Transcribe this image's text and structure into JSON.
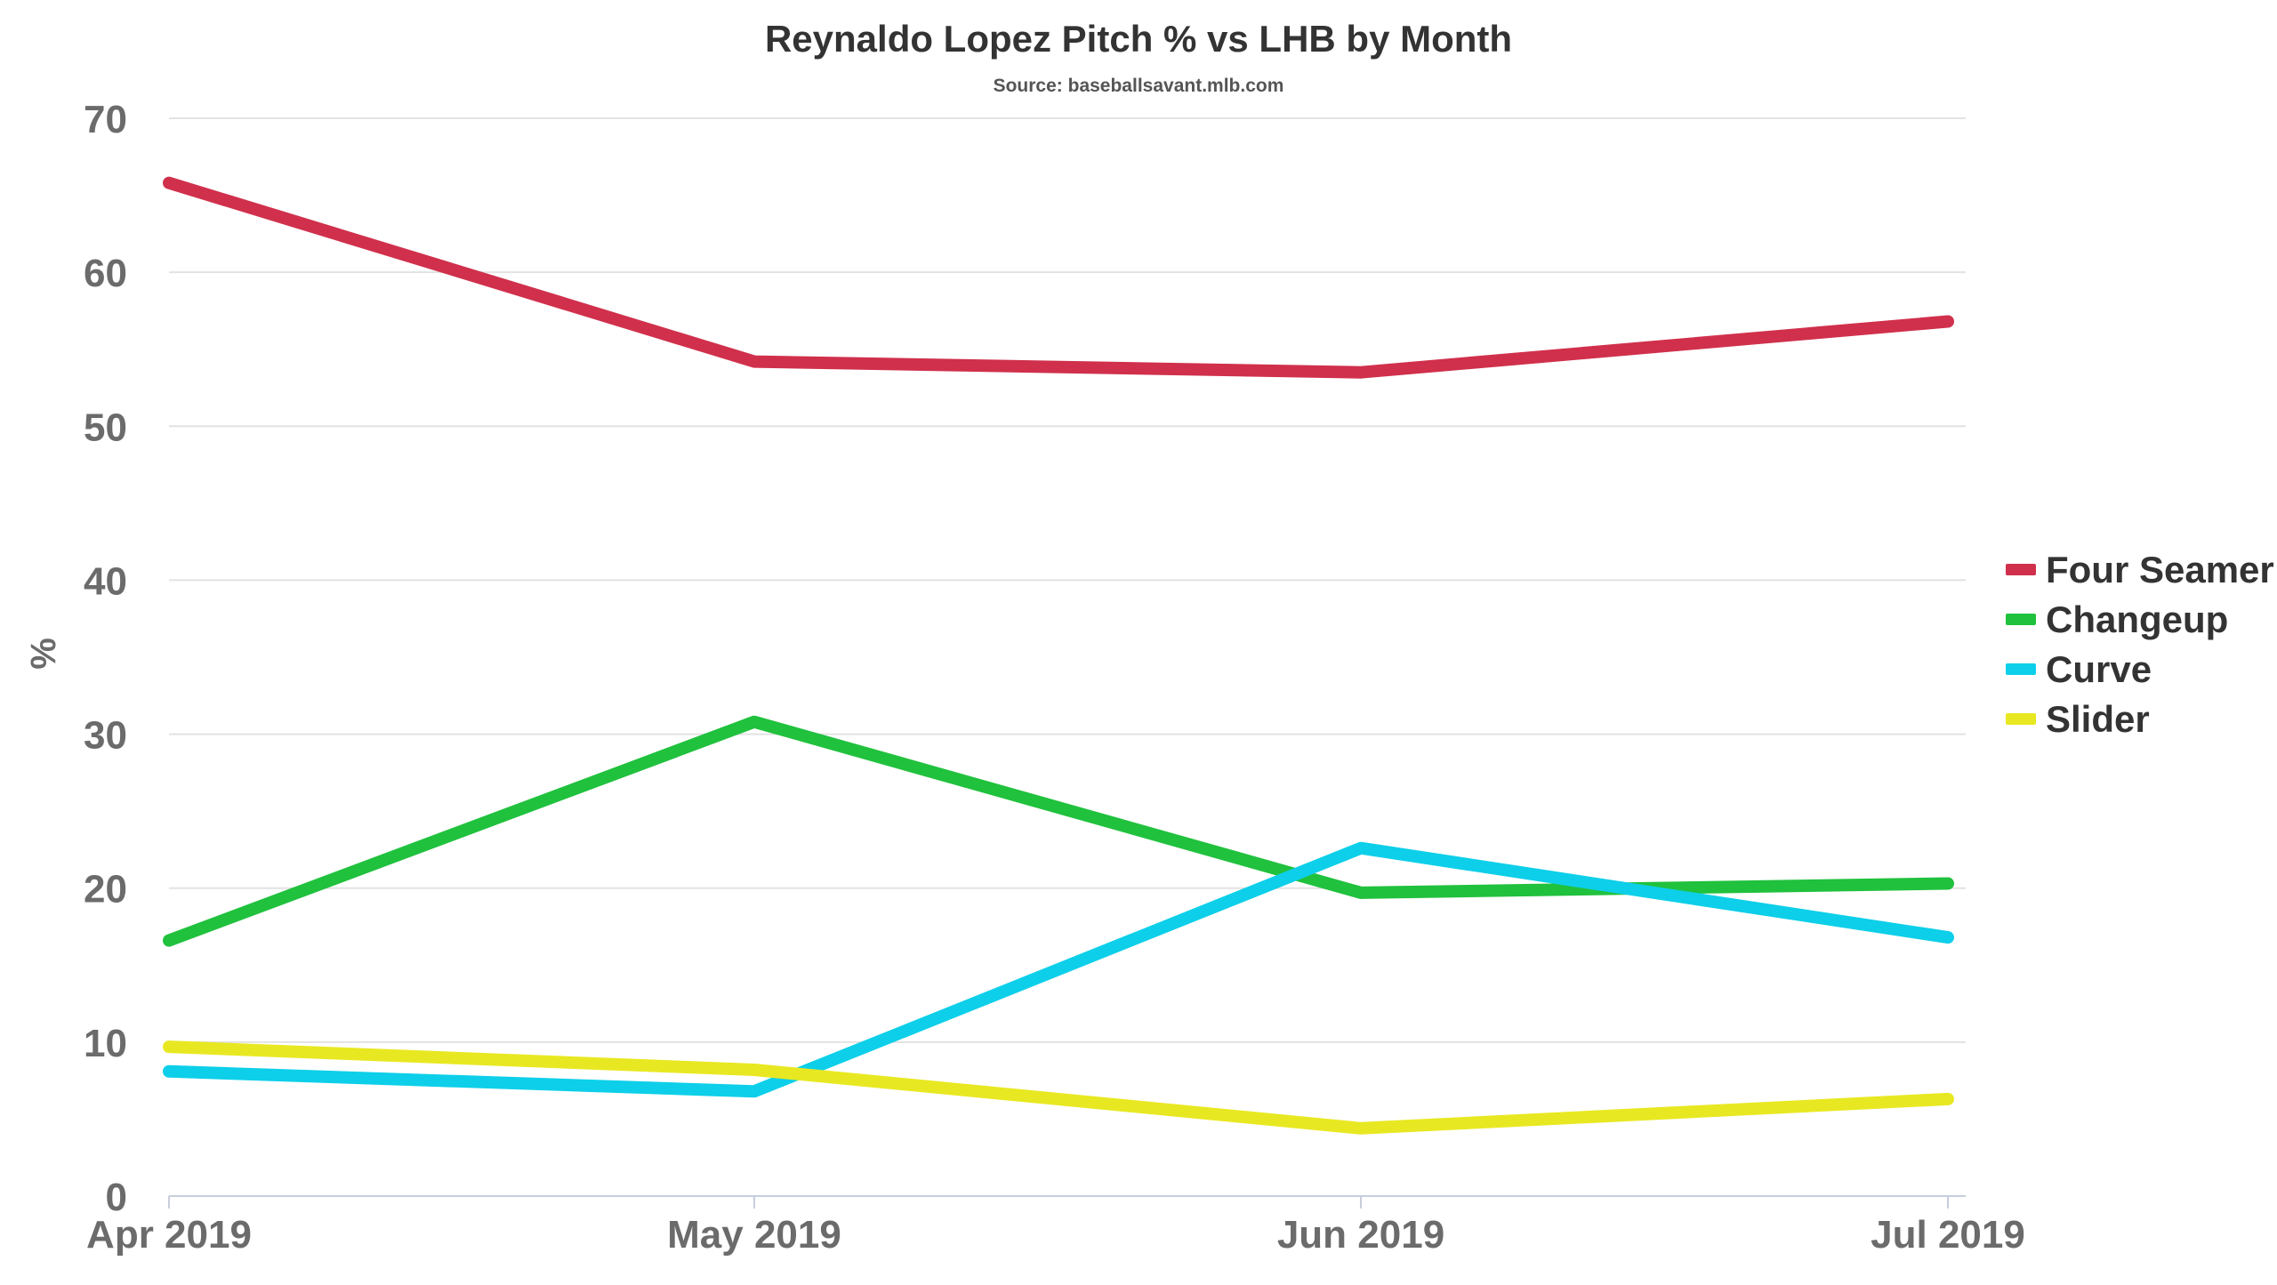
{
  "chart_data": {
    "type": "line",
    "title": "Reynaldo Lopez Pitch % vs LHB by Month",
    "subtitle": "Source: baseballsavant.mlb.com",
    "xlabel": "",
    "ylabel": "%",
    "categories": [
      "Apr 2019",
      "May 2019",
      "Jun 2019",
      "Jul 2019"
    ],
    "ylim": [
      0,
      70
    ],
    "yticks": [
      0,
      10,
      20,
      30,
      40,
      50,
      60,
      70
    ],
    "grid": true,
    "legend_position": "right",
    "series": [
      {
        "name": "Four Seamer",
        "color": "#d0304c",
        "values": [
          65.8,
          54.2,
          53.5,
          56.8
        ]
      },
      {
        "name": "Changeup",
        "color": "#20c13d",
        "values": [
          16.6,
          30.8,
          19.7,
          20.3
        ]
      },
      {
        "name": "Curve",
        "color": "#0dcfe9",
        "values": [
          8.1,
          6.8,
          22.6,
          16.8
        ]
      },
      {
        "name": "Slider",
        "color": "#e8e822",
        "values": [
          9.7,
          8.2,
          4.4,
          6.3
        ]
      }
    ]
  }
}
